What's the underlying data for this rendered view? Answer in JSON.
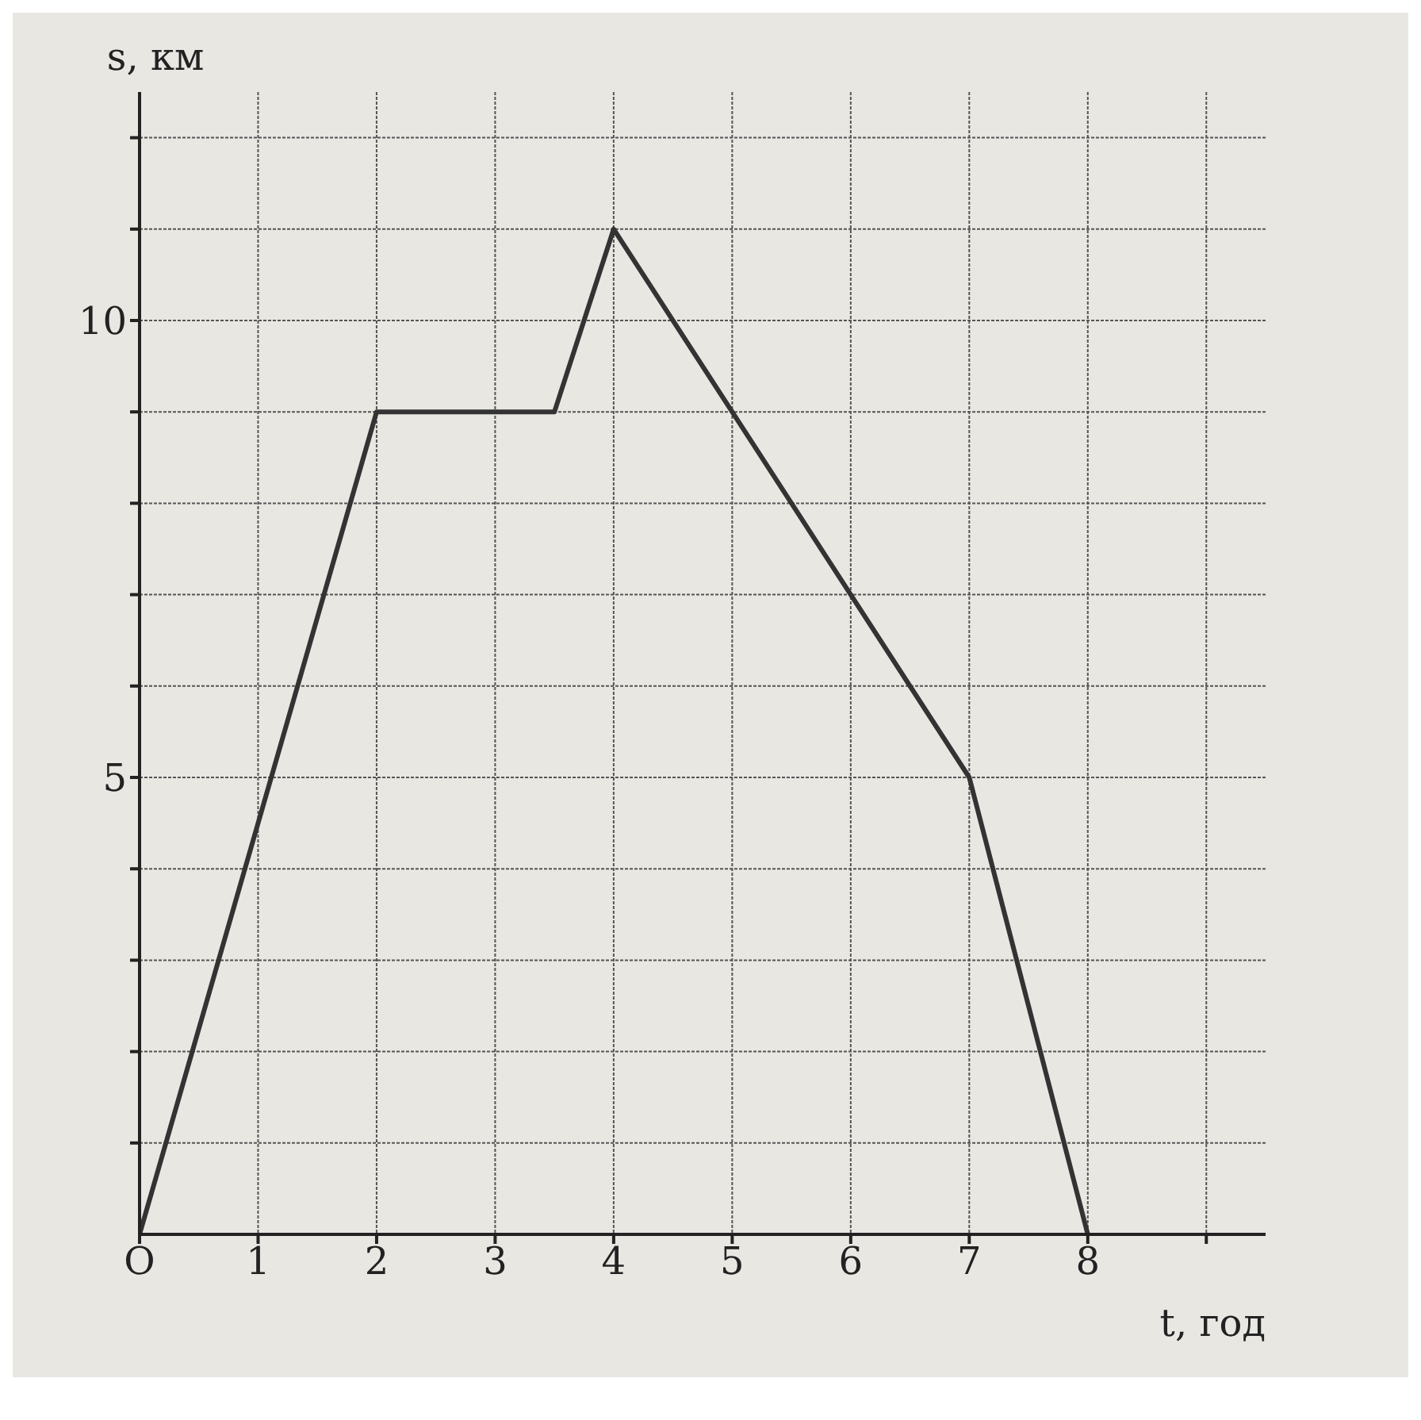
{
  "chart_data": {
    "type": "line",
    "xlabel": "t, год",
    "ylabel": "s, км",
    "x": [
      0,
      2,
      3.5,
      4,
      7,
      8
    ],
    "series": [
      {
        "color": "#333333",
        "values": [
          0,
          9,
          9,
          11,
          5,
          0
        ]
      }
    ],
    "xlim": [
      0,
      9.5
    ],
    "ylim": [
      0,
      12.5
    ],
    "xticks": [
      {
        "value": 0,
        "label": "O"
      },
      1,
      2,
      3,
      4,
      5,
      6,
      7,
      8,
      {
        "value": 9,
        "label": null
      }
    ],
    "yticks": [
      {
        "value": 1,
        "label": null
      },
      {
        "value": 2,
        "label": null
      },
      {
        "value": 3,
        "label": null
      },
      {
        "value": 4,
        "label": null
      },
      5,
      {
        "value": 6,
        "label": null
      },
      {
        "value": 7,
        "label": null
      },
      {
        "value": 8,
        "label": null
      },
      {
        "value": 9,
        "label": null
      },
      10,
      {
        "value": 11,
        "label": null
      },
      {
        "value": 12,
        "label": null
      }
    ],
    "grid": true,
    "marker": "none",
    "line_style": "solid",
    "legend": false
  }
}
